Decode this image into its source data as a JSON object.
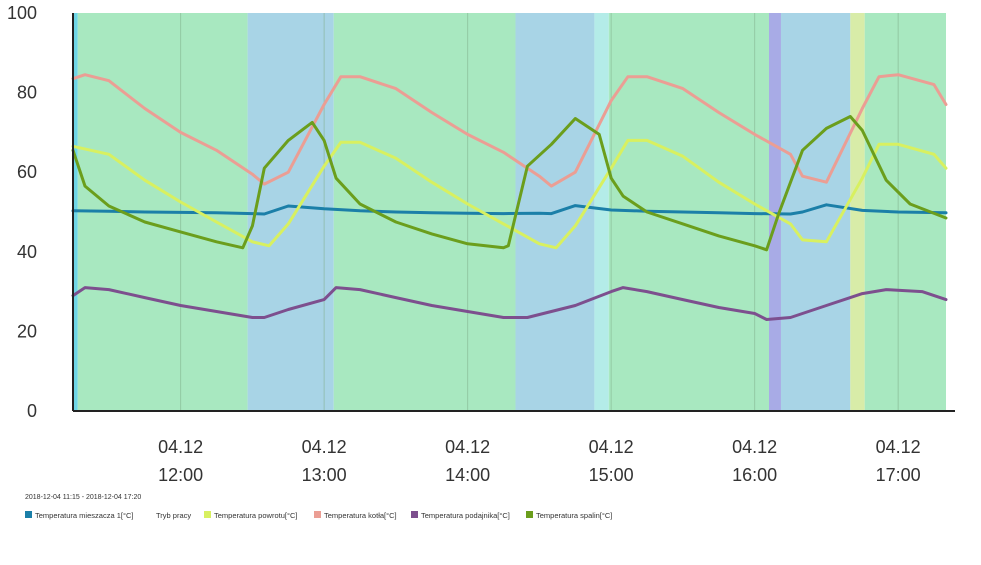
{
  "chart_data": {
    "type": "line",
    "title": "",
    "xlabel": "",
    "ylabel": "",
    "ylim": [
      0,
      100
    ],
    "xlim": [
      "11:15",
      "17:20"
    ],
    "yticks": [
      "0",
      "20",
      "40",
      "60",
      "80",
      "100"
    ],
    "xticks": [
      {
        "date": "04.12",
        "time": "12:00",
        "t": "12:00"
      },
      {
        "date": "04.12",
        "time": "13:00",
        "t": "13:00"
      },
      {
        "date": "04.12",
        "time": "14:00",
        "t": "14:00"
      },
      {
        "date": "04.12",
        "time": "15:00",
        "t": "15:00"
      },
      {
        "date": "04.12",
        "time": "16:00",
        "t": "16:00"
      },
      {
        "date": "04.12",
        "time": "17:00",
        "t": "17:00"
      }
    ],
    "grid": true,
    "date_range": "2018-12-04 11:15 - 2018-12-04 17:20",
    "legend_position": "bottom-left",
    "mode_series": {
      "name": "Tryb pracy",
      "bands": [
        {
          "start": "11:15",
          "end": "11:17",
          "color": "#6fd6e6"
        },
        {
          "start": "11:17",
          "end": "12:28",
          "color": "#a8e8c0"
        },
        {
          "start": "12:28",
          "end": "13:04",
          "color": "#a8d4e6"
        },
        {
          "start": "13:04",
          "end": "14:20",
          "color": "#a8e8c0"
        },
        {
          "start": "14:20",
          "end": "14:53",
          "color": "#a8d4e6"
        },
        {
          "start": "14:53",
          "end": "14:59",
          "color": "#b4ece8"
        },
        {
          "start": "14:59",
          "end": "16:06",
          "color": "#a8e8c0"
        },
        {
          "start": "16:06",
          "end": "16:11",
          "color": "#a8abe6"
        },
        {
          "start": "16:11",
          "end": "16:40",
          "color": "#a8d4e6"
        },
        {
          "start": "16:40",
          "end": "16:46",
          "color": "#d8eca8"
        },
        {
          "start": "16:46",
          "end": "17:20",
          "color": "#a8e8c0"
        }
      ]
    },
    "series": [
      {
        "name": "Temperatura mieszacza 1[°C]",
        "color": "#1b7fa8",
        "x": [
          "11:15",
          "11:30",
          "11:45",
          "12:00",
          "12:15",
          "12:30",
          "12:35",
          "12:45",
          "13:00",
          "13:15",
          "13:30",
          "13:45",
          "14:00",
          "14:15",
          "14:30",
          "14:35",
          "14:45",
          "15:00",
          "15:15",
          "15:30",
          "15:45",
          "16:00",
          "16:15",
          "16:20",
          "16:30",
          "16:45",
          "17:00",
          "17:20"
        ],
        "values": [
          50.3,
          50.2,
          50.0,
          49.9,
          49.8,
          49.6,
          49.5,
          51.5,
          50.8,
          50.3,
          50.0,
          49.8,
          49.7,
          49.6,
          49.7,
          49.6,
          51.6,
          50.5,
          50.2,
          50.0,
          49.8,
          49.6,
          49.5,
          50.0,
          51.8,
          50.4,
          50.0,
          49.8
        ]
      },
      {
        "name": "Temperatura powrotu[°C]",
        "color": "#d8f060",
        "x": [
          "11:15",
          "11:30",
          "11:45",
          "12:00",
          "12:15",
          "12:30",
          "12:37",
          "12:45",
          "13:00",
          "13:07",
          "13:15",
          "13:30",
          "13:45",
          "14:00",
          "14:15",
          "14:30",
          "14:37",
          "14:45",
          "15:00",
          "15:07",
          "15:15",
          "15:30",
          "15:45",
          "16:00",
          "16:15",
          "16:20",
          "16:30",
          "16:45",
          "16:52",
          "17:00",
          "17:15",
          "17:20"
        ],
        "values": [
          66.5,
          64.5,
          58.0,
          52.5,
          47.5,
          42.5,
          41.5,
          47.0,
          61.5,
          67.5,
          67.5,
          63.5,
          57.5,
          52.0,
          47.0,
          42.0,
          41.0,
          46.5,
          61.0,
          68.0,
          68.0,
          64.0,
          57.5,
          52.0,
          47.0,
          43.0,
          42.5,
          58.5,
          67.0,
          67.0,
          64.5,
          61.0
        ]
      },
      {
        "name": "Temperatura kotła[°C]",
        "color": "#eb9e94",
        "x": [
          "11:15",
          "11:20",
          "11:30",
          "11:45",
          "12:00",
          "12:15",
          "12:30",
          "12:35",
          "12:45",
          "13:00",
          "13:07",
          "13:15",
          "13:30",
          "13:45",
          "14:00",
          "14:15",
          "14:30",
          "14:35",
          "14:45",
          "15:00",
          "15:07",
          "15:15",
          "15:30",
          "15:45",
          "16:00",
          "16:15",
          "16:20",
          "16:30",
          "16:45",
          "16:52",
          "17:00",
          "17:15",
          "17:20"
        ],
        "values": [
          83.5,
          84.5,
          83.0,
          76.0,
          70.0,
          65.5,
          59.5,
          57.0,
          60.0,
          77.0,
          84.0,
          84.0,
          81.0,
          75.0,
          69.5,
          65.0,
          59.0,
          56.5,
          60.0,
          78.0,
          84.0,
          84.0,
          81.0,
          75.0,
          69.5,
          64.5,
          59.0,
          57.5,
          76.0,
          84.0,
          84.5,
          82.0,
          77.0
        ]
      },
      {
        "name": "Temperatura podajnika[°C]",
        "color": "#7d4f8e",
        "x": [
          "11:15",
          "11:20",
          "11:30",
          "11:45",
          "12:00",
          "12:15",
          "12:30",
          "12:35",
          "12:45",
          "13:00",
          "13:05",
          "13:15",
          "13:30",
          "13:45",
          "14:00",
          "14:15",
          "14:25",
          "14:45",
          "15:00",
          "15:05",
          "15:15",
          "15:30",
          "15:45",
          "16:00",
          "16:05",
          "16:15",
          "16:30",
          "16:40",
          "16:45",
          "16:55",
          "17:10",
          "17:20"
        ],
        "values": [
          29.0,
          31.0,
          30.5,
          28.5,
          26.5,
          25.0,
          23.5,
          23.5,
          25.5,
          28.0,
          31.0,
          30.5,
          28.5,
          26.5,
          25.0,
          23.5,
          23.5,
          26.5,
          30.0,
          31.0,
          30.0,
          28.0,
          26.0,
          24.5,
          23.0,
          23.5,
          26.5,
          28.5,
          29.5,
          30.5,
          30.0,
          28.0
        ]
      },
      {
        "name": "Temperatura spalin[°C]",
        "color": "#6b9e1c",
        "x": [
          "11:15",
          "11:20",
          "11:30",
          "11:45",
          "12:00",
          "12:15",
          "12:26",
          "12:30",
          "12:35",
          "12:45",
          "12:55",
          "13:00",
          "13:05",
          "13:15",
          "13:30",
          "13:45",
          "14:00",
          "14:15",
          "14:17",
          "14:25",
          "14:35",
          "14:45",
          "14:55",
          "15:00",
          "15:05",
          "15:15",
          "15:30",
          "15:45",
          "16:00",
          "16:05",
          "16:10",
          "16:20",
          "16:30",
          "16:40",
          "16:45",
          "16:55",
          "17:05",
          "17:20"
        ],
        "values": [
          65.5,
          56.5,
          51.5,
          47.5,
          45.0,
          42.5,
          41.0,
          46.5,
          61.0,
          68.0,
          72.5,
          68.0,
          58.5,
          52.0,
          47.5,
          44.5,
          42.0,
          41.0,
          41.5,
          61.5,
          67.0,
          73.5,
          69.5,
          58.5,
          54.0,
          50.0,
          47.0,
          44.0,
          41.5,
          40.5,
          49.5,
          65.5,
          71.0,
          74.0,
          70.5,
          58.0,
          52.0,
          48.5
        ]
      }
    ]
  }
}
